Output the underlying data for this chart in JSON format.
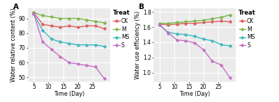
{
  "time_A": [
    5,
    8,
    11,
    14,
    17,
    20,
    23,
    26,
    29
  ],
  "CK_A": [
    94,
    86,
    85,
    84,
    85,
    84,
    85,
    85,
    83
  ],
  "M_A": [
    94,
    92,
    91,
    90,
    90,
    90,
    89,
    88,
    87
  ],
  "MS_A": [
    93,
    82,
    76,
    74,
    73,
    72,
    72,
    72,
    71
  ],
  "S_A": [
    93,
    74,
    69,
    64,
    60,
    59,
    58,
    57,
    49
  ],
  "time_B": [
    5,
    8,
    11,
    14,
    17,
    20,
    23,
    26,
    29
  ],
  "CK_B": [
    1.64,
    1.63,
    1.64,
    1.65,
    1.65,
    1.66,
    1.67,
    1.68,
    1.67
  ],
  "M_B": [
    1.65,
    1.65,
    1.66,
    1.67,
    1.68,
    1.69,
    1.71,
    1.73,
    1.76
  ],
  "MS_B": [
    1.63,
    1.53,
    1.51,
    1.5,
    1.48,
    1.44,
    1.42,
    1.37,
    1.35
  ],
  "S_B": [
    1.63,
    1.52,
    1.43,
    1.42,
    1.39,
    1.3,
    1.15,
    1.1,
    0.93
  ],
  "color_CK": "#e05c5c",
  "color_M": "#7ab648",
  "color_MS": "#3ab8c0",
  "color_S": "#c46fc4",
  "marker": "D",
  "markersize": 2.5,
  "linewidth": 1.0,
  "xlabel": "Time (Day)",
  "ylabel_A": "Water relative content (%)",
  "ylabel_B": "Water use efficiency (%)",
  "xlim": [
    3,
    31
  ],
  "xticks": [
    5,
    10,
    15,
    20,
    25
  ],
  "ylim_A": [
    47,
    97
  ],
  "yticks_A": [
    50,
    60,
    70,
    80,
    90
  ],
  "ylim_B": [
    0.88,
    1.85
  ],
  "yticks_B": [
    1.0,
    1.2,
    1.4,
    1.6,
    1.8
  ],
  "legend_title": "Treat",
  "legend_labels": [
    "CK",
    "M",
    "MS",
    "S"
  ],
  "panel_A_label": "A",
  "panel_B_label": "B",
  "bg_color": "#ebebeb",
  "grid_color": "white",
  "font_size_axis": 5.5,
  "font_size_label": 5.8,
  "font_size_legend_title": 6.0,
  "font_size_legend": 5.5,
  "font_size_panel": 7.5
}
